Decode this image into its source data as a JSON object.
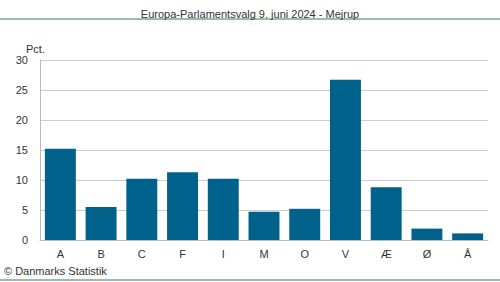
{
  "chart_data": {
    "type": "bar",
    "title": "Europa-Parlamentsvalg 9. juni 2024 - Mejrup",
    "ylabel": "Pct.",
    "annotations": [
      "© Danmarks Statistik"
    ],
    "categories": [
      "A",
      "B",
      "C",
      "F",
      "I",
      "M",
      "O",
      "V",
      "Æ",
      "Ø",
      "Å"
    ],
    "values": [
      15.2,
      5.5,
      10.2,
      11.3,
      10.2,
      4.7,
      5.2,
      26.7,
      8.8,
      1.9,
      1.1
    ],
    "color": "#00628b",
    "ylim": [
      0,
      30
    ],
    "yticks": [
      0,
      5,
      10,
      15,
      20,
      25,
      30
    ],
    "grid": true
  }
}
